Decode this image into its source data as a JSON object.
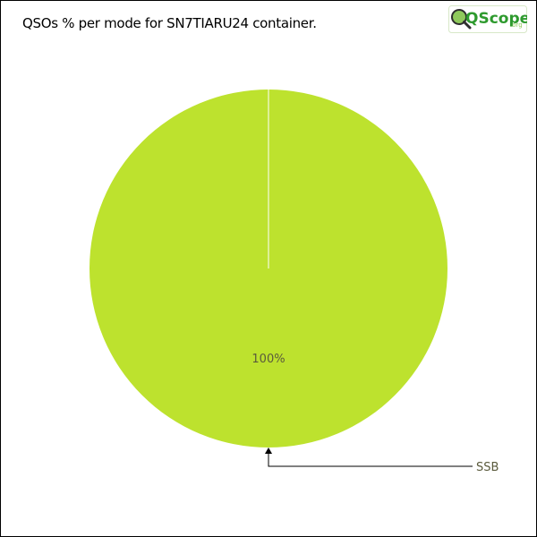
{
  "logo": {
    "text": "QScope",
    "suffix": ".org"
  },
  "colors": {
    "slice": "#bde22e",
    "slice_edge": "#ffffff",
    "label": "#5a5a3c",
    "leader": "#000000",
    "logo_green": "#2e9a2e",
    "logo_light": "#8fc95c"
  },
  "chart_data": {
    "type": "pie",
    "title": "QSOs % per mode for SN7TIARU24 container.",
    "slices": [
      {
        "label": "SSB",
        "value": 100,
        "value_label": "100%"
      }
    ],
    "legend": "none"
  }
}
